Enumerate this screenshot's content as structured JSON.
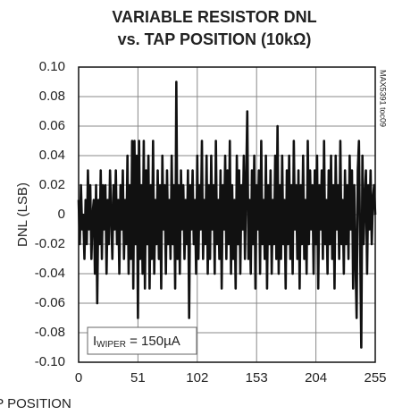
{
  "chart_data": {
    "type": "line",
    "title": [
      "VARIABLE RESISTOR DNL",
      "vs. TAP POSITION (10kΩ)"
    ],
    "xlabel": "TAP POSITION",
    "ylabel": "DNL (LSB)",
    "side_label": "MAX5391 toc09",
    "annotation": {
      "symbol": "I",
      "subscript": "WIPER",
      "text": " = 150µA"
    },
    "color": "#111111",
    "grid": true,
    "xlim": [
      0,
      255
    ],
    "xticks": [
      0,
      51,
      102,
      153,
      204,
      255
    ],
    "ylim": [
      -0.1,
      0.1
    ],
    "yticks": [
      {
        "value": -0.1,
        "label": "-0.10"
      },
      {
        "value": -0.08,
        "label": "-0.08"
      },
      {
        "value": -0.06,
        "label": "-0.06"
      },
      {
        "value": -0.04,
        "label": "-0.04"
      },
      {
        "value": -0.02,
        "label": "-0.02"
      },
      0,
      {
        "value": 0.02,
        "label": "0.02"
      },
      {
        "value": 0.04,
        "label": "0.04"
      },
      {
        "value": 0.06,
        "label": "0.06"
      },
      {
        "value": 0.08,
        "label": "0.08"
      },
      {
        "value": 0.1,
        "label": "0.10"
      }
    ],
    "values": [
      0.01,
      -0.02,
      0.02,
      -0.01,
      0.0,
      -0.03,
      0.01,
      -0.02,
      0.03,
      -0.01,
      0.02,
      -0.03,
      0.0,
      0.01,
      -0.04,
      0.02,
      -0.06,
      0.01,
      -0.02,
      0.03,
      -0.03,
      0.02,
      -0.01,
      0.02,
      -0.04,
      0.01,
      -0.02,
      0.03,
      0.0,
      -0.03,
      0.02,
      -0.01,
      0.03,
      -0.02,
      0.01,
      -0.04,
      0.02,
      -0.01,
      0.03,
      -0.03,
      0.01,
      -0.02,
      0.04,
      -0.04,
      0.02,
      -0.03,
      0.05,
      -0.05,
      0.05,
      -0.02,
      0.04,
      -0.07,
      0.05,
      -0.03,
      0.02,
      -0.04,
      0.05,
      -0.05,
      0.03,
      -0.02,
      0.04,
      -0.05,
      0.02,
      -0.03,
      0.05,
      -0.04,
      0.01,
      -0.02,
      0.03,
      -0.03,
      0.02,
      -0.05,
      0.04,
      -0.01,
      0.02,
      -0.04,
      0.03,
      -0.02,
      0.01,
      -0.03,
      0.04,
      -0.02,
      0.02,
      -0.05,
      0.09,
      -0.03,
      0.02,
      -0.04,
      0.03,
      -0.01,
      0.02,
      -0.03,
      0.01,
      -0.02,
      0.03,
      -0.07,
      0.02,
      -0.01,
      0.03,
      -0.02,
      0.01,
      -0.04,
      0.04,
      -0.03,
      0.02,
      -0.01,
      0.05,
      -0.03,
      0.01,
      -0.02,
      0.04,
      -0.04,
      0.02,
      -0.03,
      0.04,
      -0.01,
      0.02,
      -0.04,
      0.05,
      -0.02,
      0.01,
      -0.03,
      0.03,
      -0.05,
      0.02,
      -0.01,
      0.04,
      -0.03,
      0.03,
      -0.02,
      0.05,
      -0.04,
      0.02,
      -0.03,
      0.01,
      -0.05,
      0.04,
      -0.02,
      0.03,
      -0.04,
      0.02,
      -0.01,
      0.04,
      -0.03,
      0.02,
      0.07,
      -0.03,
      0.01,
      -0.04,
      0.03,
      -0.02,
      0.04,
      -0.05,
      0.02,
      -0.01,
      0.03,
      -0.04,
      0.05,
      -0.02,
      0.01,
      -0.03,
      0.04,
      -0.05,
      0.02,
      -0.02,
      0.03,
      -0.04,
      0.01,
      -0.02,
      0.04,
      -0.03,
      0.06,
      -0.04,
      0.02,
      -0.03,
      0.04,
      -0.02,
      0.01,
      -0.05,
      0.03,
      -0.02,
      0.04,
      -0.03,
      0.02,
      -0.04,
      0.05,
      -0.01,
      0.02,
      -0.03,
      0.03,
      -0.05,
      0.02,
      -0.02,
      0.04,
      -0.03,
      0.01,
      -0.04,
      0.05,
      -0.02,
      0.03,
      -0.01,
      0.02,
      -0.04,
      0.03,
      -0.02,
      0.04,
      -0.05,
      0.02,
      -0.01,
      0.03,
      -0.03,
      0.05,
      -0.02,
      0.01,
      -0.04,
      0.03,
      -0.02,
      0.04,
      -0.03,
      0.02,
      -0.05,
      0.04,
      -0.01,
      0.02,
      -0.03,
      0.05,
      -0.02,
      0.01,
      -0.04,
      0.03,
      -0.02,
      0.02,
      -0.03,
      0.04,
      -0.01,
      0.03,
      -0.05,
      0.02,
      -0.03,
      -0.07,
      0.03,
      0.05,
      -0.02,
      -0.09,
      0.04,
      -0.02,
      0.01,
      0.03,
      -0.04,
      0.02,
      -0.01,
      0.03,
      -0.02,
      0.01,
      0.02,
      0.0
    ]
  }
}
